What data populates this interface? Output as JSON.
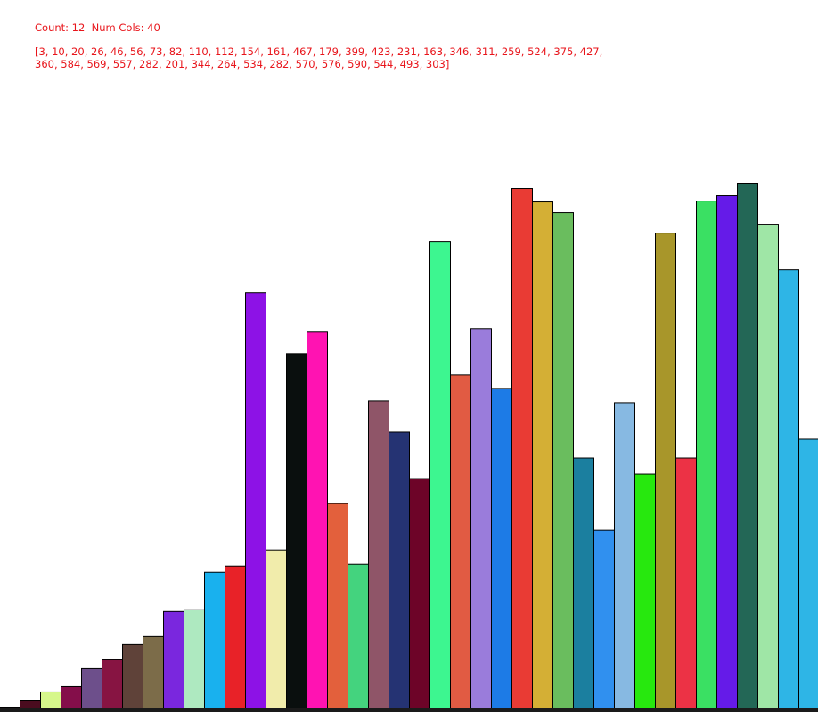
{
  "header": {
    "count_text": "Count: 12  Num Cols: 40",
    "array_line_1": "[3, 10, 20, 26, 46, 56, 73, 82, 110, 112, 154, 161, 467, 179, 399, 423, 231, 163, 346, 311, 259, 524, 375, 427,",
    "array_line_2": "360, 584, 569, 557, 282, 201, 344, 264, 534, 282, 570, 576, 590, 544, 493, 303]"
  },
  "chart_data": {
    "type": "bar",
    "title": "",
    "xlabel": "",
    "ylabel": "",
    "ylim": [
      0,
      590
    ],
    "grid": false,
    "legend": "none",
    "values": [
      3,
      10,
      20,
      26,
      46,
      56,
      73,
      82,
      110,
      112,
      154,
      161,
      467,
      179,
      399,
      423,
      231,
      163,
      346,
      311,
      259,
      524,
      375,
      427,
      360,
      584,
      569,
      557,
      282,
      201,
      344,
      264,
      534,
      282,
      570,
      576,
      590,
      544,
      493,
      303
    ],
    "colors": [
      "#c39be6",
      "#4a0c1f",
      "#d6f78c",
      "#840e4a",
      "#6d4f8b",
      "#871442",
      "#5f4239",
      "#7c6c49",
      "#7a27de",
      "#aee9c0",
      "#19b1ee",
      "#e82228",
      "#8d12e6",
      "#f1ecab",
      "#0a0f0e",
      "#ff13b2",
      "#e3603c",
      "#44d37e",
      "#8f5568",
      "#253373",
      "#6d0428",
      "#3df690",
      "#e15b43",
      "#9a7cdb",
      "#1d7be6",
      "#e93b34",
      "#d4af35",
      "#6abd5e",
      "#1b7f9f",
      "#3090ef",
      "#87b9e2",
      "#27e80e",
      "#a8962a",
      "#ec3245",
      "#3ae063",
      "#651be8",
      "#236756",
      "#9fe6a6",
      "#2eb5e6",
      "#2eb5e6"
    ]
  }
}
